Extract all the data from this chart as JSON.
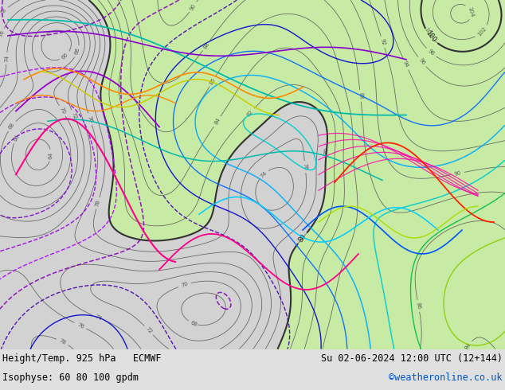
{
  "title_left": "Height/Temp. 925 hPa   ECMWF",
  "title_left2": "Isophyse: 60 80 100 gpdm",
  "title_right": "Su 02-06-2024 12:00 UTC (12+144)",
  "title_right2": "©weatheronline.co.uk",
  "bg_color": "#c8c8c8",
  "green_color": "#c8f0a0",
  "bottom_text_color": "#000000",
  "copyright_color": "#0055cc",
  "fig_width": 6.34,
  "fig_height": 4.9,
  "dpi": 100
}
